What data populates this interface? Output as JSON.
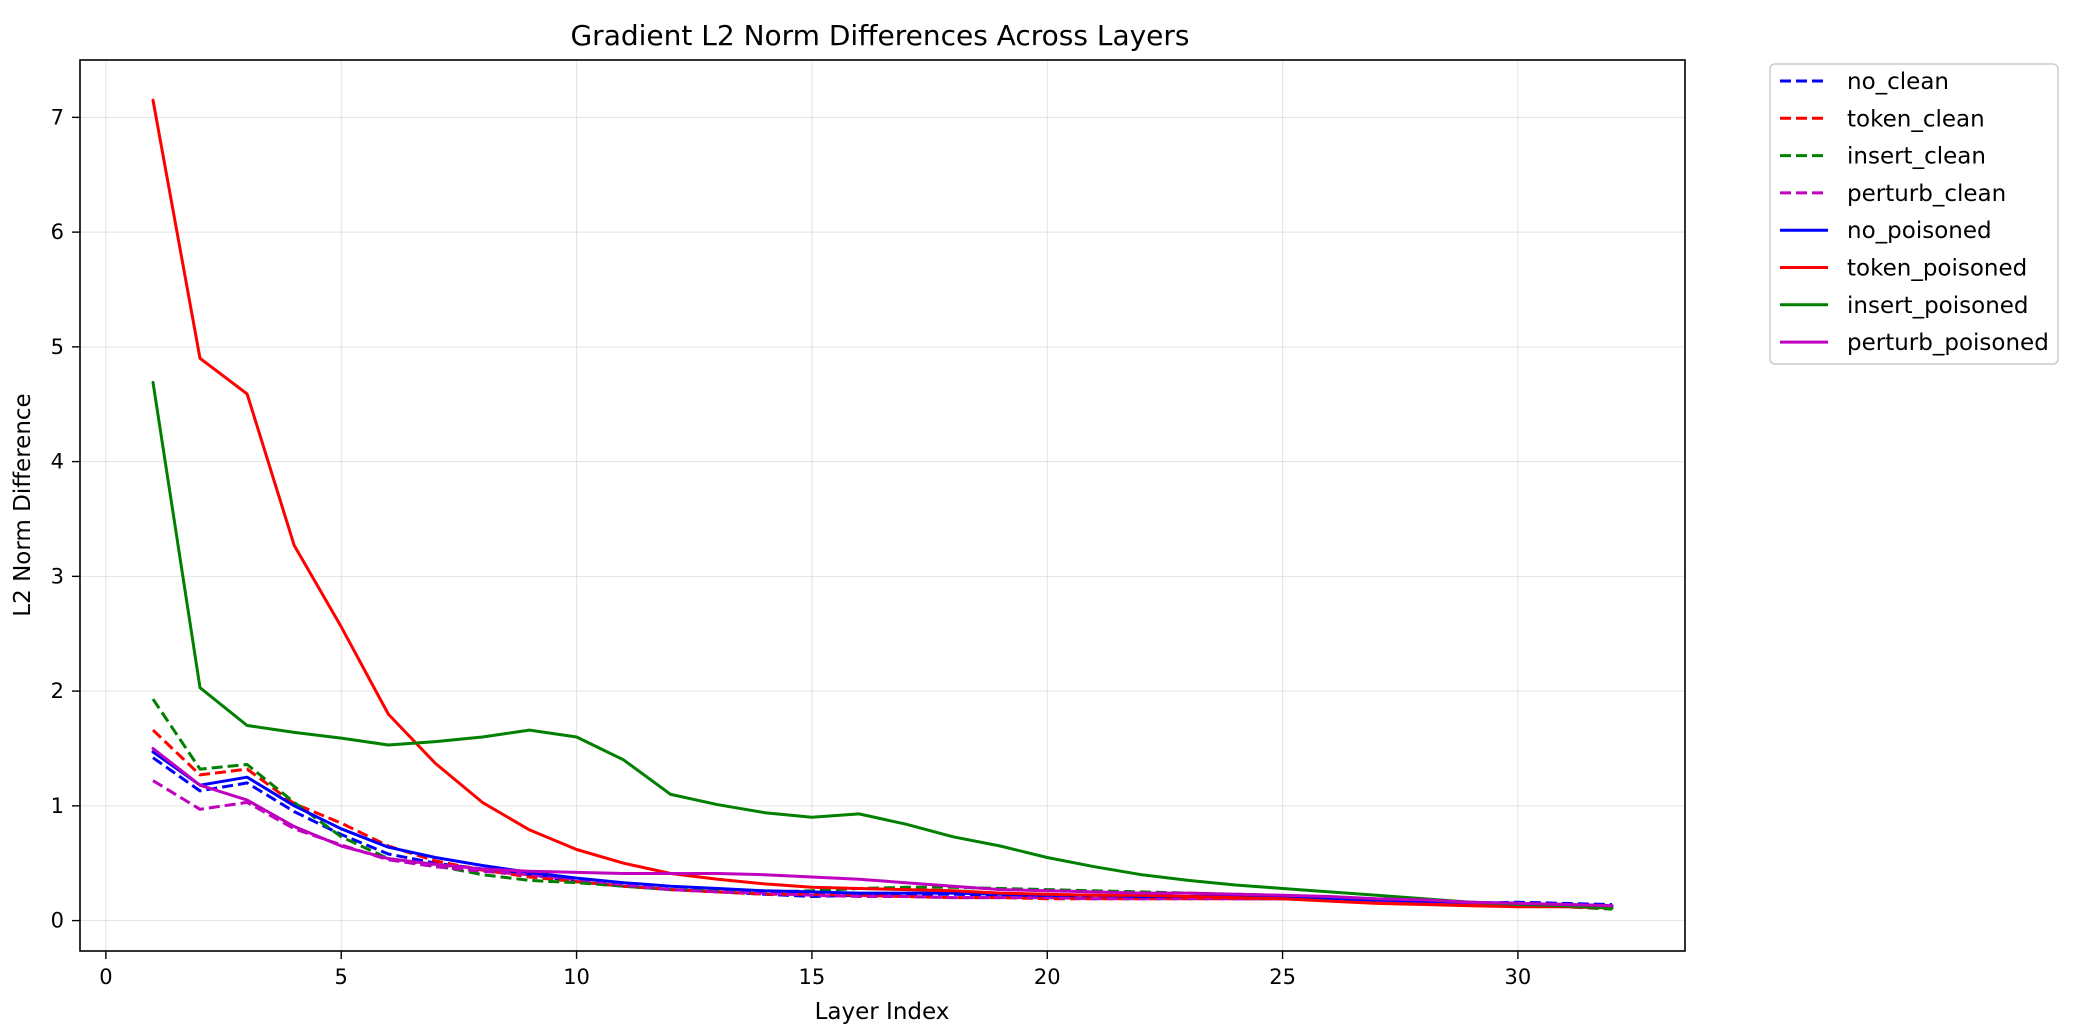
{
  "chart_data": {
    "type": "line",
    "title": "Gradient L2 Norm Differences Across Layers",
    "xlabel": "Layer Index",
    "ylabel": "L2 Norm Difference",
    "xlim": [
      -0.55,
      33.55
    ],
    "ylim": [
      -0.265,
      7.5
    ],
    "xticks": [
      0,
      5,
      10,
      15,
      20,
      25,
      30
    ],
    "yticks": [
      0,
      1,
      2,
      3,
      4,
      5,
      6,
      7
    ],
    "grid": true,
    "legend_position": "outside-right",
    "x": [
      1,
      2,
      3,
      4,
      5,
      6,
      7,
      8,
      9,
      10,
      11,
      12,
      13,
      14,
      15,
      16,
      17,
      18,
      19,
      20,
      21,
      22,
      23,
      24,
      25,
      26,
      27,
      28,
      29,
      30,
      31,
      32
    ],
    "series": [
      {
        "name": "no_clean",
        "color": "#0000ff",
        "dash": true,
        "values": [
          1.42,
          1.13,
          1.2,
          0.95,
          0.75,
          0.58,
          0.5,
          0.45,
          0.4,
          0.34,
          0.3,
          0.27,
          0.25,
          0.23,
          0.21,
          0.22,
          0.23,
          0.23,
          0.22,
          0.21,
          0.2,
          0.2,
          0.2,
          0.19,
          0.19,
          0.18,
          0.17,
          0.16,
          0.15,
          0.16,
          0.15,
          0.14
        ]
      },
      {
        "name": "token_clean",
        "color": "#ff0000",
        "dash": true,
        "values": [
          1.66,
          1.27,
          1.32,
          1.02,
          0.85,
          0.65,
          0.52,
          0.44,
          0.38,
          0.34,
          0.3,
          0.27,
          0.25,
          0.23,
          0.23,
          0.22,
          0.21,
          0.2,
          0.2,
          0.19,
          0.19,
          0.19,
          0.19,
          0.19,
          0.19,
          0.18,
          0.17,
          0.16,
          0.15,
          0.14,
          0.13,
          0.12
        ]
      },
      {
        "name": "insert_clean",
        "color": "#008000",
        "dash": true,
        "values": [
          1.93,
          1.32,
          1.36,
          1.03,
          0.73,
          0.54,
          0.48,
          0.4,
          0.35,
          0.33,
          0.3,
          0.27,
          0.26,
          0.25,
          0.26,
          0.28,
          0.29,
          0.29,
          0.28,
          0.27,
          0.26,
          0.25,
          0.24,
          0.23,
          0.22,
          0.2,
          0.18,
          0.16,
          0.15,
          0.14,
          0.12,
          0.1
        ]
      },
      {
        "name": "perturb_clean",
        "color": "#bf00bf",
        "dash": true,
        "values": [
          1.22,
          0.97,
          1.03,
          0.8,
          0.66,
          0.53,
          0.47,
          0.43,
          0.4,
          0.36,
          0.31,
          0.27,
          0.25,
          0.24,
          0.22,
          0.21,
          0.21,
          0.2,
          0.2,
          0.2,
          0.19,
          0.19,
          0.19,
          0.19,
          0.19,
          0.18,
          0.17,
          0.16,
          0.15,
          0.14,
          0.13,
          0.12
        ]
      },
      {
        "name": "no_poisoned",
        "color": "#0000ff",
        "dash": false,
        "values": [
          1.47,
          1.18,
          1.25,
          1.0,
          0.8,
          0.64,
          0.55,
          0.48,
          0.42,
          0.37,
          0.33,
          0.3,
          0.28,
          0.26,
          0.25,
          0.24,
          0.24,
          0.24,
          0.23,
          0.22,
          0.22,
          0.21,
          0.21,
          0.21,
          0.2,
          0.19,
          0.18,
          0.17,
          0.16,
          0.15,
          0.14,
          0.13
        ]
      },
      {
        "name": "token_poisoned",
        "color": "#ff0000",
        "dash": false,
        "values": [
          7.15,
          4.9,
          4.59,
          3.27,
          2.56,
          1.8,
          1.37,
          1.03,
          0.79,
          0.62,
          0.5,
          0.41,
          0.36,
          0.32,
          0.29,
          0.28,
          0.27,
          0.26,
          0.24,
          0.23,
          0.22,
          0.22,
          0.21,
          0.2,
          0.19,
          0.17,
          0.15,
          0.14,
          0.13,
          0.12,
          0.12,
          0.11
        ]
      },
      {
        "name": "insert_poisoned",
        "color": "#008000",
        "dash": false,
        "values": [
          4.69,
          2.03,
          1.7,
          1.64,
          1.59,
          1.53,
          1.56,
          1.6,
          1.66,
          1.6,
          1.4,
          1.1,
          1.01,
          0.94,
          0.9,
          0.93,
          0.84,
          0.73,
          0.65,
          0.55,
          0.47,
          0.4,
          0.35,
          0.31,
          0.28,
          0.25,
          0.22,
          0.19,
          0.16,
          0.14,
          0.13,
          0.11
        ]
      },
      {
        "name": "perturb_poisoned",
        "color": "#bf00bf",
        "dash": false,
        "values": [
          1.5,
          1.18,
          1.05,
          0.82,
          0.65,
          0.54,
          0.49,
          0.45,
          0.43,
          0.42,
          0.41,
          0.41,
          0.41,
          0.4,
          0.38,
          0.36,
          0.33,
          0.3,
          0.27,
          0.26,
          0.25,
          0.24,
          0.24,
          0.23,
          0.22,
          0.21,
          0.19,
          0.18,
          0.16,
          0.15,
          0.14,
          0.13
        ]
      }
    ]
  }
}
